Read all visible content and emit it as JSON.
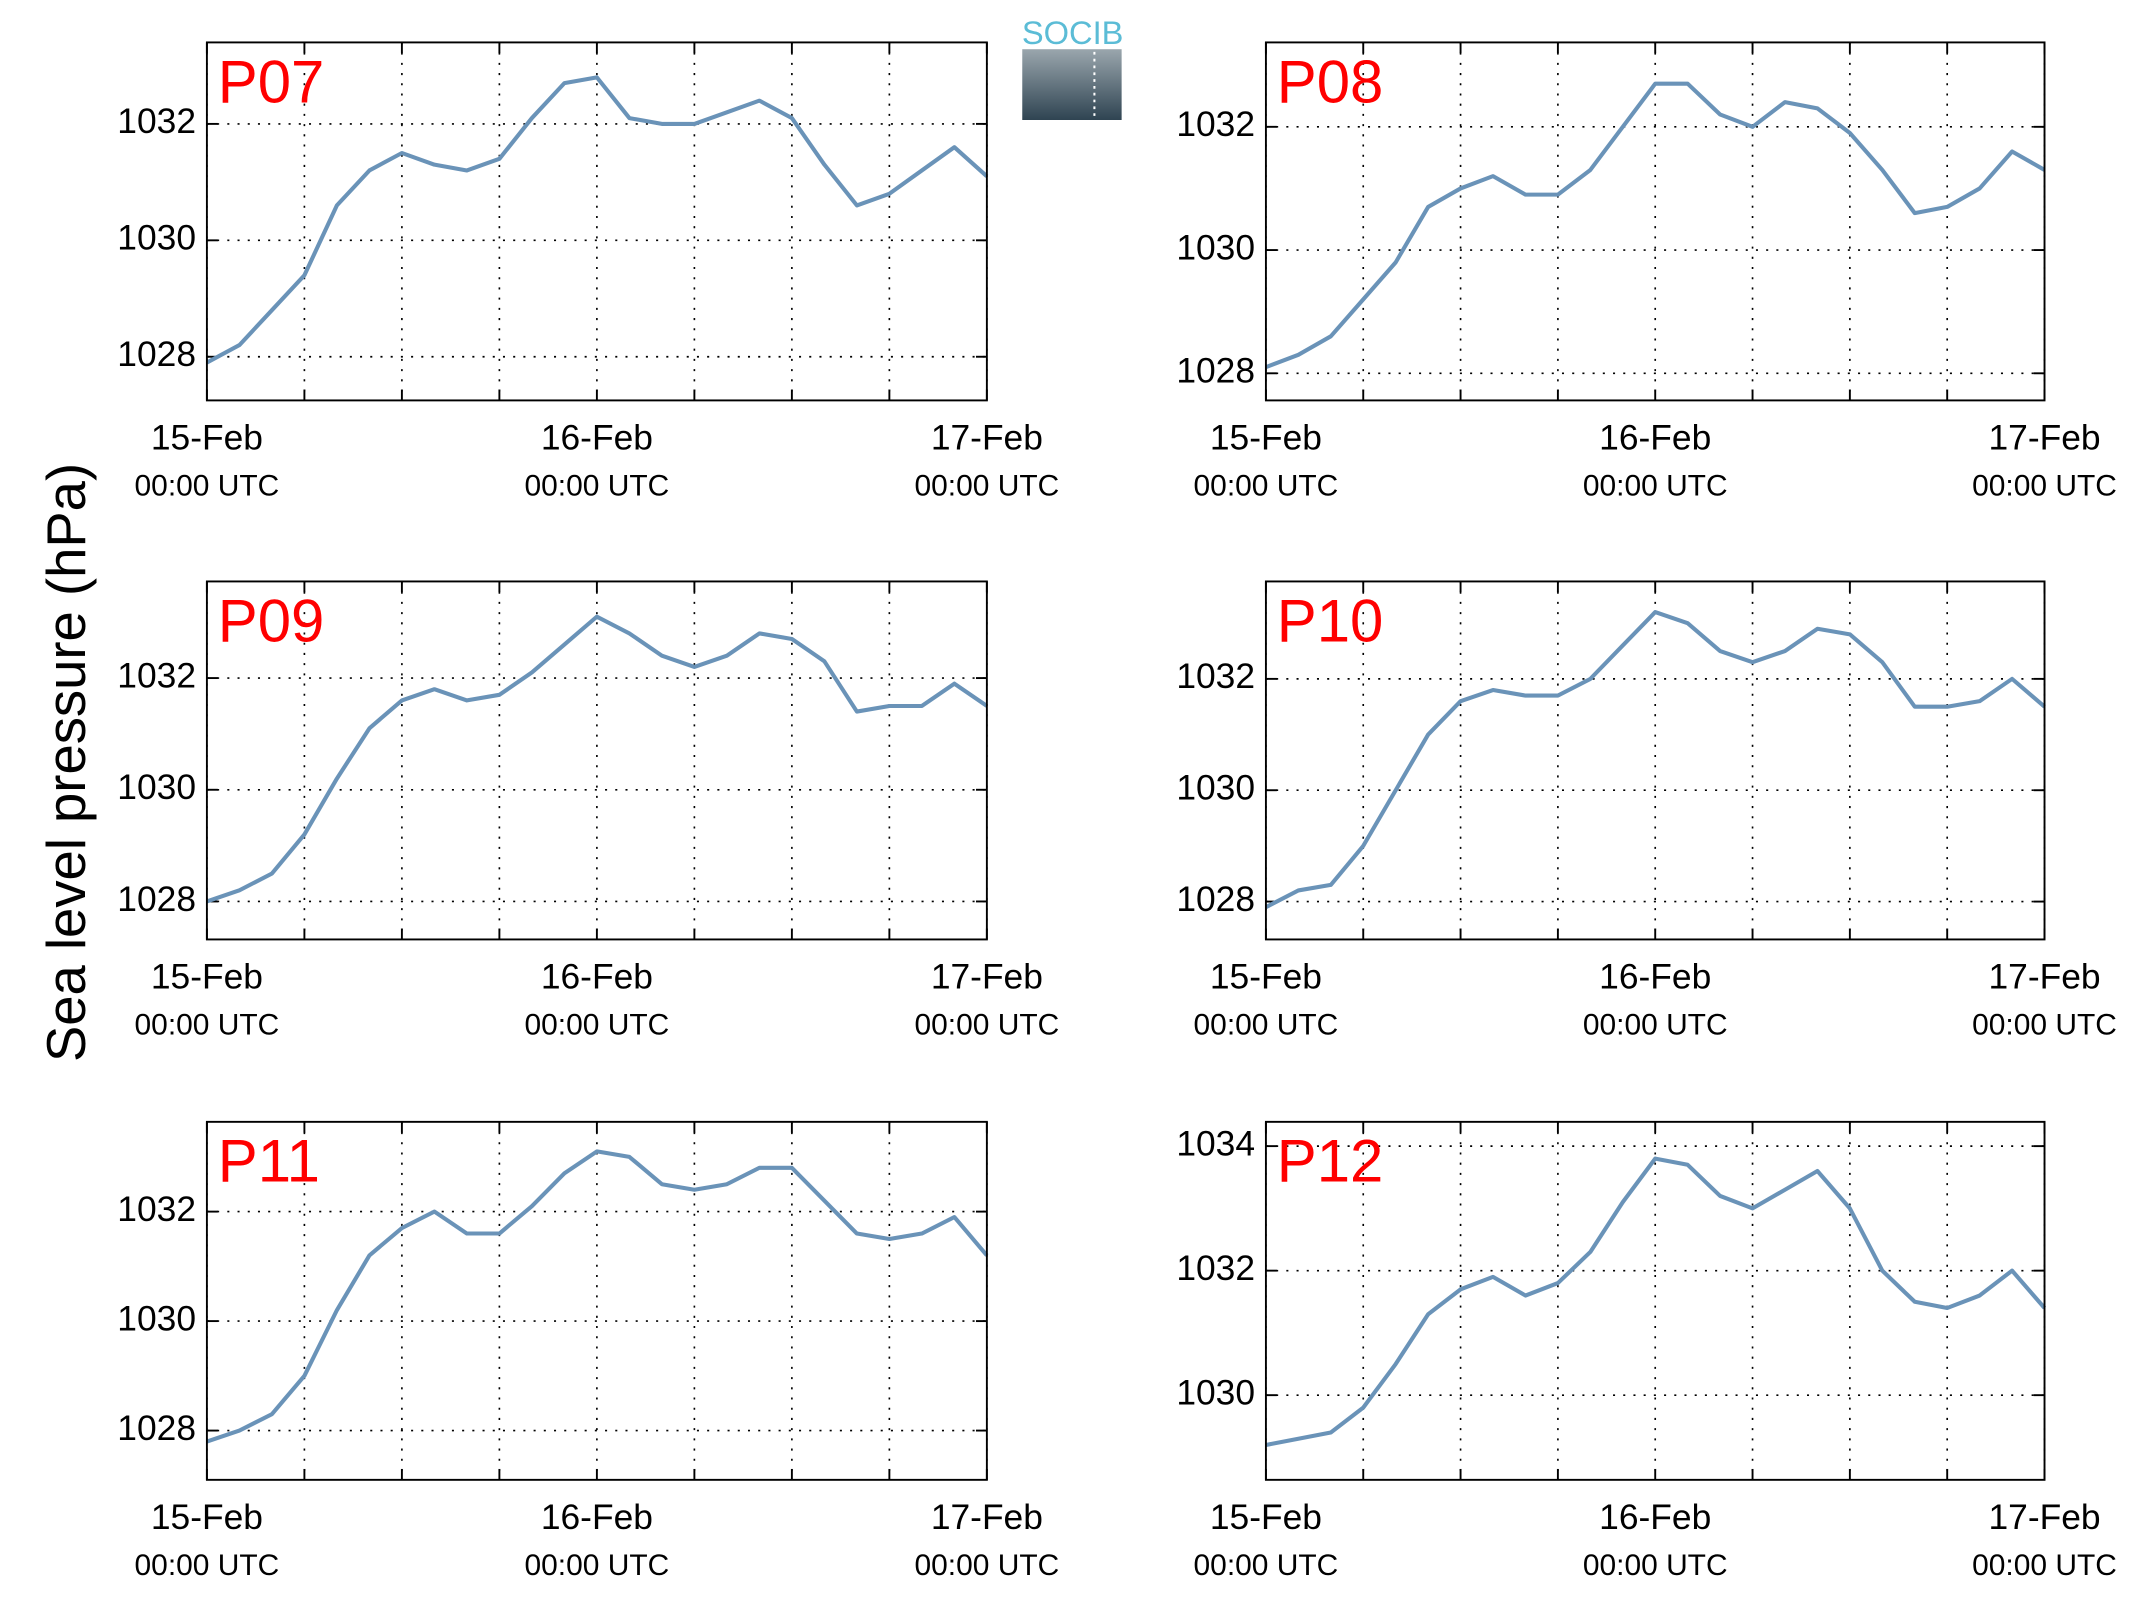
{
  "ylabel": "Sea level pressure (hPa)",
  "logo": "SOCIB",
  "chart_data": [
    {
      "type": "line",
      "title": "P07",
      "x": [
        0,
        2,
        4,
        6,
        8,
        10,
        12,
        14,
        16,
        18,
        20,
        22,
        24,
        26,
        28,
        30,
        32,
        34,
        36,
        38,
        40,
        42,
        44,
        46,
        48
      ],
      "series": [
        {
          "color": "#6a93b8",
          "values": [
            1027.9,
            1028.2,
            1028.8,
            1029.4,
            1030.6,
            1031.2,
            1031.5,
            1031.3,
            1031.2,
            1031.4,
            1032.1,
            1032.7,
            1032.8,
            1032.1,
            1032.0,
            1032.0,
            1032.2,
            1032.4,
            1032.1,
            1031.3,
            1030.6,
            1030.8,
            1031.2,
            1031.6,
            1031.1
          ]
        }
      ],
      "xlim": [
        0,
        48
      ],
      "xticks": [
        {
          "value": 0,
          "label": "15-Feb\n00:00 UTC"
        },
        {
          "value": 24,
          "label": "16-Feb\n00:00 UTC"
        },
        {
          "value": 48,
          "label": "17-Feb\n00:00 UTC"
        }
      ],
      "xminorticks": [
        6,
        12,
        18,
        30,
        36,
        42
      ],
      "ylim": [
        1027.25,
        1033.4
      ],
      "yticks": [
        1028,
        1030,
        1032
      ],
      "grid": true
    },
    {
      "type": "line",
      "title": "P08",
      "x": [
        0,
        2,
        4,
        6,
        8,
        10,
        12,
        14,
        16,
        18,
        20,
        22,
        24,
        26,
        28,
        30,
        32,
        34,
        36,
        38,
        40,
        42,
        44,
        46,
        48
      ],
      "series": [
        {
          "color": "#6a93b8",
          "values": [
            1028.1,
            1028.3,
            1028.6,
            1029.2,
            1029.8,
            1030.7,
            1031.0,
            1031.2,
            1030.9,
            1030.9,
            1031.3,
            1032.0,
            1032.7,
            1032.7,
            1032.2,
            1032.0,
            1032.4,
            1032.3,
            1031.9,
            1031.3,
            1030.6,
            1030.7,
            1031.0,
            1031.6,
            1031.3
          ]
        }
      ],
      "xlim": [
        0,
        48
      ],
      "xticks": [
        {
          "value": 0,
          "label": "15-Feb\n00:00 UTC"
        },
        {
          "value": 24,
          "label": "16-Feb\n00:00 UTC"
        },
        {
          "value": 48,
          "label": "17-Feb\n00:00 UTC"
        }
      ],
      "xminorticks": [
        6,
        12,
        18,
        30,
        36,
        42
      ],
      "ylim": [
        1027.56,
        1033.37
      ],
      "yticks": [
        1028,
        1030,
        1032
      ],
      "grid": true
    },
    {
      "type": "line",
      "title": "P09",
      "x": [
        0,
        2,
        4,
        6,
        8,
        10,
        12,
        14,
        16,
        18,
        20,
        22,
        24,
        26,
        28,
        30,
        32,
        34,
        36,
        38,
        40,
        42,
        44,
        46,
        48
      ],
      "series": [
        {
          "color": "#6a93b8",
          "values": [
            1028.0,
            1028.2,
            1028.5,
            1029.2,
            1030.2,
            1031.1,
            1031.6,
            1031.8,
            1031.6,
            1031.7,
            1032.1,
            1032.6,
            1033.1,
            1032.8,
            1032.4,
            1032.2,
            1032.4,
            1032.8,
            1032.7,
            1032.3,
            1031.4,
            1031.5,
            1031.5,
            1031.9,
            1031.5
          ]
        }
      ],
      "xlim": [
        0,
        48
      ],
      "xticks": [
        {
          "value": 0,
          "label": "15-Feb\n00:00 UTC"
        },
        {
          "value": 24,
          "label": "16-Feb\n00:00 UTC"
        },
        {
          "value": 48,
          "label": "17-Feb\n00:00 UTC"
        }
      ],
      "xminorticks": [
        6,
        12,
        18,
        30,
        36,
        42
      ],
      "ylim": [
        1027.32,
        1033.73
      ],
      "yticks": [
        1028,
        1030,
        1032
      ],
      "grid": true
    },
    {
      "type": "line",
      "title": "P10",
      "x": [
        0,
        2,
        4,
        6,
        8,
        10,
        12,
        14,
        16,
        18,
        20,
        22,
        24,
        26,
        28,
        30,
        32,
        34,
        36,
        38,
        40,
        42,
        44,
        46,
        48
      ],
      "series": [
        {
          "color": "#6a93b8",
          "values": [
            1027.9,
            1028.2,
            1028.3,
            1029.0,
            1030.0,
            1031.0,
            1031.6,
            1031.8,
            1031.7,
            1031.7,
            1032.0,
            1032.6,
            1033.2,
            1033.0,
            1032.5,
            1032.3,
            1032.5,
            1032.9,
            1032.8,
            1032.3,
            1031.5,
            1031.5,
            1031.6,
            1032.0,
            1031.5
          ]
        }
      ],
      "xlim": [
        0,
        48
      ],
      "xticks": [
        {
          "value": 0,
          "label": "15-Feb\n00:00 UTC"
        },
        {
          "value": 24,
          "label": "16-Feb\n00:00 UTC"
        },
        {
          "value": 48,
          "label": "17-Feb\n00:00 UTC"
        }
      ],
      "xminorticks": [
        6,
        12,
        18,
        30,
        36,
        42
      ],
      "ylim": [
        1027.32,
        1033.75
      ],
      "yticks": [
        1028,
        1030,
        1032
      ],
      "grid": true
    },
    {
      "type": "line",
      "title": "P11",
      "x": [
        0,
        2,
        4,
        6,
        8,
        10,
        12,
        14,
        16,
        18,
        20,
        22,
        24,
        26,
        28,
        30,
        32,
        34,
        36,
        38,
        40,
        42,
        44,
        46,
        48
      ],
      "series": [
        {
          "color": "#6a93b8",
          "values": [
            1027.8,
            1028.0,
            1028.3,
            1029.0,
            1030.2,
            1031.2,
            1031.7,
            1032.0,
            1031.6,
            1031.6,
            1032.1,
            1032.7,
            1033.1,
            1033.0,
            1032.5,
            1032.4,
            1032.5,
            1032.8,
            1032.8,
            1032.2,
            1031.6,
            1031.5,
            1031.6,
            1031.9,
            1031.2
          ]
        }
      ],
      "xlim": [
        0,
        48
      ],
      "xticks": [
        {
          "value": 0,
          "label": "15-Feb\n00:00 UTC"
        },
        {
          "value": 24,
          "label": "16-Feb\n00:00 UTC"
        },
        {
          "value": 48,
          "label": "17-Feb\n00:00 UTC"
        }
      ],
      "xminorticks": [
        6,
        12,
        18,
        30,
        36,
        42
      ],
      "ylim": [
        1027.1,
        1033.64
      ],
      "yticks": [
        1028,
        1030,
        1032
      ],
      "grid": true
    },
    {
      "type": "line",
      "title": "P12",
      "x": [
        0,
        2,
        4,
        6,
        8,
        10,
        12,
        14,
        16,
        18,
        20,
        22,
        24,
        26,
        28,
        30,
        32,
        34,
        36,
        38,
        40,
        42,
        44,
        46,
        48
      ],
      "series": [
        {
          "color": "#6a93b8",
          "values": [
            1029.2,
            1029.3,
            1029.4,
            1029.8,
            1030.5,
            1031.3,
            1031.7,
            1031.9,
            1031.6,
            1031.8,
            1032.3,
            1033.1,
            1033.8,
            1033.7,
            1033.2,
            1033.0,
            1033.3,
            1033.6,
            1033.0,
            1032.0,
            1031.5,
            1031.4,
            1031.6,
            1032.0,
            1031.4
          ]
        }
      ],
      "xlim": [
        0,
        48
      ],
      "xticks": [
        {
          "value": 0,
          "label": "15-Feb\n00:00 UTC"
        },
        {
          "value": 24,
          "label": "16-Feb\n00:00 UTC"
        },
        {
          "value": 48,
          "label": "17-Feb\n00:00 UTC"
        }
      ],
      "xminorticks": [
        6,
        12,
        18,
        30,
        36,
        42
      ],
      "ylim": [
        1028.64,
        1034.39
      ],
      "yticks": [
        1030,
        1032,
        1034
      ],
      "grid": true
    }
  ]
}
